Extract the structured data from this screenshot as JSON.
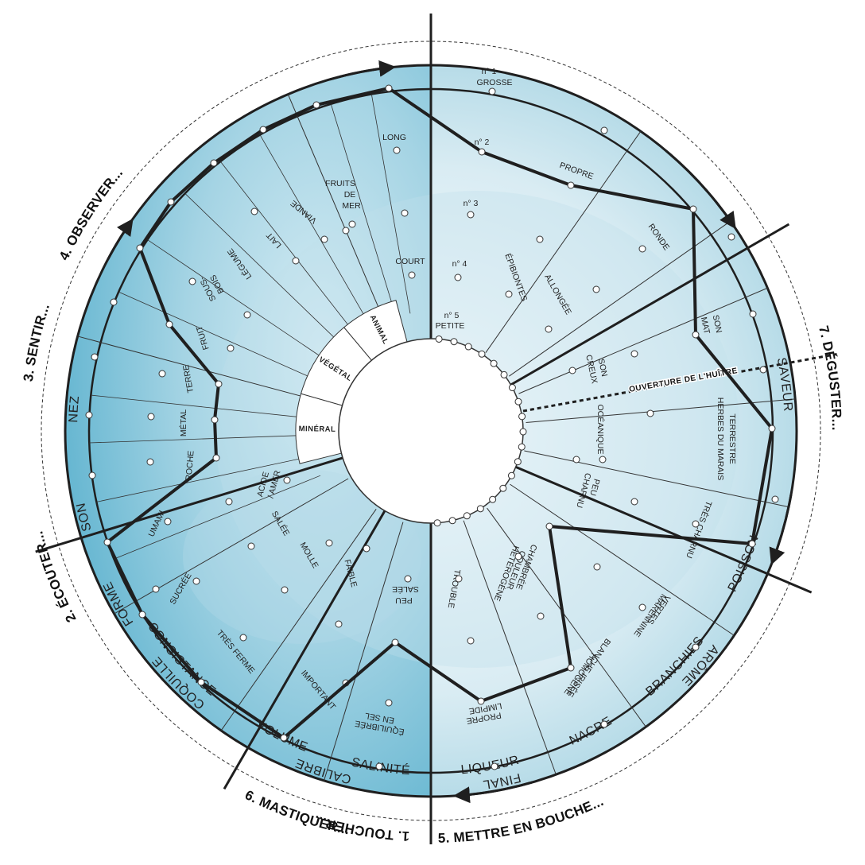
{
  "colors": {
    "water_light": "#e6f2f7",
    "water_mid": "#a9d4e2",
    "water_dark": "#5fb3cf",
    "line": "#1f1f1f"
  },
  "steps": [
    {
      "label": "1. TOUCHER...",
      "key": "toucher"
    },
    {
      "label": "2. ÉCOUTER...",
      "key": "ecouter"
    },
    {
      "label": "3. SENTIR...",
      "key": "sentir"
    },
    {
      "label": "4. OBSERVER...",
      "key": "observer"
    },
    {
      "label": "5. METTRE EN BOUCHE...",
      "key": "bouche"
    },
    {
      "label": "6. MASTIQUER...",
      "key": "mastiquer"
    },
    {
      "label": "7. DÉGUSTER...",
      "key": "deguster"
    }
  ],
  "categories": [
    {
      "label": "CALIBRE",
      "key": "calibre"
    },
    {
      "label": "COQUILLE",
      "key": "coquille"
    },
    {
      "label": "FORME",
      "key": "forme"
    },
    {
      "label": "SON",
      "key": "son"
    },
    {
      "label": "NEZ",
      "key": "nez"
    },
    {
      "label": "POISSON",
      "key": "poisson"
    },
    {
      "label": "BRANCHIES",
      "key": "branchies"
    },
    {
      "label": "NACRE",
      "key": "nacre"
    },
    {
      "label": "LIQUEUR",
      "key": "liqueur"
    },
    {
      "label": "SALINITÉ",
      "key": "salinite"
    },
    {
      "label": "VOLUME",
      "key": "volume"
    },
    {
      "label": "CONSISTANCE",
      "key": "consistance"
    },
    {
      "label": "SAVEUR",
      "key": "saveur"
    },
    {
      "label": "ARÔME",
      "key": "arome"
    },
    {
      "label": "FINAL",
      "key": "final"
    }
  ],
  "criteria": {
    "calibre": [
      "n° 1",
      "GROSSE",
      "n° 2",
      "n° 3",
      "n° 4",
      "n° 5",
      "PETITE"
    ],
    "coquille": [
      "PROPRE",
      "ÉPIBIONTES"
    ],
    "forme": [
      "RONDE",
      "ALLONGÉE"
    ],
    "son": [
      "SON",
      "MAT",
      "SON",
      "CREUX"
    ],
    "nez": [
      "TERRESTRE",
      "HERBES DU MARAIS",
      "OCÉANIQUE"
    ],
    "poisson": [
      "TRÈS CHARNU",
      "PEU",
      "CHARNU"
    ],
    "branchies": [
      "VERTES",
      "MARENNINE",
      "BLANCHE IRISÉE",
      "HOMOGÈNE"
    ],
    "nacre": [
      "HÉTÉROGÈNE",
      "COULEUR",
      "CHAMBRÉE"
    ],
    "liqueur": [
      "TROUBLE",
      "PROPRE",
      "LIMPIDE"
    ],
    "salinite": [
      "PEU",
      "SALÉE",
      "ÉQUILIBRÉE",
      "EN SEL"
    ],
    "volume": [
      "FAIBLE",
      "IMPORTANT"
    ],
    "consistance": [
      "MOLLE",
      "TRÈS FERME"
    ],
    "saveur": [
      "ACIDE",
      "/ AMER",
      "SALÉE",
      "UMAMI",
      "SUCRÉE"
    ],
    "arome": [
      "ROCHE",
      "MÉTAL",
      "TERRE",
      "FRUIT",
      "SOUS-",
      "BOIS",
      "LÉGUME",
      "LAIT",
      "VIANDE",
      "FRUITS",
      "DE",
      "MER"
    ],
    "final": [
      "LONG",
      "COURT"
    ]
  },
  "arome_groups": [
    "MINÉRAL",
    "VÉGÉTAL",
    "ANIMAL"
  ],
  "banner": "OUVERTURE DE L'HUÎTRE",
  "profile": [
    {
      "category": "calibre",
      "value": "n° 2"
    },
    {
      "category": "coquille",
      "value": "PROPRE"
    },
    {
      "category": "forme",
      "value": "RONDE"
    },
    {
      "category": "son",
      "value": "MAT"
    },
    {
      "category": "nez",
      "value": "TERRESTRE"
    },
    {
      "category": "poisson",
      "value": "TRÈS CHARNU"
    },
    {
      "category": "branchies",
      "value": "BLANCHE IRISÉE"
    },
    {
      "category": "nacre",
      "value": "HOMOGÈNE"
    },
    {
      "category": "liqueur",
      "value": "LIMPIDE"
    },
    {
      "category": "salinite",
      "value": "ÉQUILIBRÉE"
    },
    {
      "category": "volume",
      "value": "IMPORTANT"
    },
    {
      "category": "consistance",
      "value": "TRÈS FERME"
    },
    {
      "category": "saveur",
      "value": "UMAMI"
    },
    {
      "category": "arome",
      "value": "ROCHE"
    },
    {
      "category": "arome",
      "value": "MÉTAL"
    },
    {
      "category": "arome",
      "value": "TERRE"
    },
    {
      "category": "arome",
      "value": "FRUIT"
    },
    {
      "category": "arome",
      "value": "SOUS-BOIS"
    },
    {
      "category": "arome",
      "value": "LÉGUME"
    },
    {
      "category": "arome",
      "value": "LAIT"
    },
    {
      "category": "arome",
      "value": "VIANDE"
    },
    {
      "category": "arome",
      "value": "FRUITS DE MER"
    },
    {
      "category": "final",
      "value": "LONG"
    }
  ]
}
